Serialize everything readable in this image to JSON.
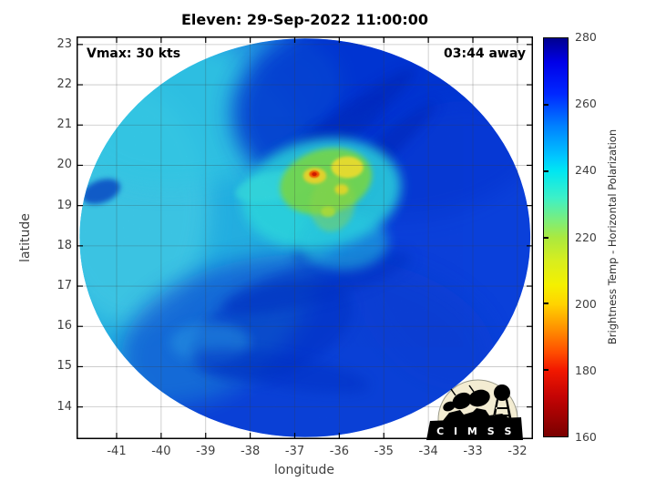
{
  "figure": {
    "title": "Eleven: 29-Sep-2022 11:00:00"
  },
  "annotations": {
    "vmax": "Vmax: 30 kts",
    "eta": "03:44 away"
  },
  "logo": {
    "name": "CIMSS",
    "banner_text": "C I M S S",
    "circle_color": "#f3ecd2"
  },
  "chart_data": {
    "type": "heatmap",
    "title": "Eleven: 29-Sep-2022 11:00:00",
    "subtitle_left": "Vmax: 30 kts",
    "subtitle_right": "03:44 away",
    "xlabel": "longitude",
    "ylabel": "latitude",
    "xlim": [
      -41.9,
      -31.65
    ],
    "ylim": [
      13.2,
      23.2
    ],
    "x_ticks": [
      -41,
      -40,
      -39,
      -38,
      -37,
      -36,
      -35,
      -34,
      -33,
      -32
    ],
    "y_ticks": [
      14,
      15,
      16,
      17,
      18,
      19,
      20,
      21,
      22,
      23
    ],
    "grid": true,
    "grid_color": "rgba(60,60,60,0.3)",
    "swath": {
      "center_lon": -36.77,
      "center_lat": 18.2,
      "rx_deg": 5.06,
      "ry_deg": 4.95,
      "base_color": "#0b4bee"
    },
    "features": [
      [
        -40.0,
        18.6,
        3.7,
        4.6,
        0,
        "#29c6ef",
        0.9,
        "b12"
      ],
      [
        -40.7,
        19.0,
        1.8,
        3.0,
        0,
        "#4bdaf3",
        0.7,
        "b12"
      ],
      [
        -38.9,
        21.4,
        3.0,
        1.8,
        -15,
        "#36d2f1",
        0.7,
        "b12"
      ],
      [
        -34.8,
        21.3,
        3.6,
        2.6,
        0,
        "#0635dc",
        0.85,
        "b12"
      ],
      [
        -33.2,
        18.0,
        2.6,
        3.6,
        0,
        "#0a41e4",
        0.55,
        "b12"
      ],
      [
        -36.7,
        15.2,
        4.2,
        2.6,
        0,
        "#0842de",
        0.6,
        "b12"
      ],
      [
        -37.5,
        15.9,
        1.9,
        1.1,
        -20,
        "#0533cf",
        0.5,
        "b6"
      ],
      [
        -38.9,
        15.6,
        0.9,
        0.5,
        0,
        "#2da8f2",
        0.45,
        "b6"
      ],
      [
        -35.8,
        21.1,
        1.9,
        0.35,
        -38,
        "#0228c0",
        0.55,
        "b6"
      ],
      [
        -35.1,
        20.3,
        1.7,
        0.28,
        -42,
        "#0228c0",
        0.5,
        "b6"
      ],
      [
        -36.4,
        20.6,
        1.5,
        0.3,
        -30,
        "#0531cc",
        0.5,
        "b6"
      ],
      [
        -35.95,
        18.95,
        1.6,
        0.45,
        -50,
        "#0329c4",
        0.45,
        "b6"
      ],
      [
        -36.5,
        17.1,
        2.2,
        0.5,
        -15,
        "#0431ce",
        0.5,
        "b6"
      ],
      [
        -37.3,
        14.9,
        2.0,
        0.4,
        10,
        "#0431ce",
        0.45,
        "b6"
      ],
      [
        -41.35,
        19.35,
        0.45,
        0.28,
        -20,
        "#0531c8",
        0.7,
        "b3"
      ],
      [
        -36.4,
        19.3,
        1.8,
        1.35,
        -10,
        "#2fe2ea",
        0.85,
        "b6"
      ],
      [
        -37.4,
        19.5,
        0.95,
        0.35,
        -12,
        "#38e3e8",
        0.75,
        "b3"
      ],
      [
        -35.9,
        18.1,
        1.0,
        0.7,
        0,
        "#2bd8ee",
        0.5,
        "b6"
      ],
      [
        -36.3,
        19.6,
        1.05,
        0.8,
        -15,
        "#7ee44d",
        0.9,
        "b3"
      ],
      [
        -36.15,
        19.05,
        0.5,
        0.7,
        10,
        "#9ae24a",
        0.45,
        "b3"
      ],
      [
        -35.82,
        19.95,
        0.36,
        0.27,
        0,
        "#f8ea33",
        0.95,
        "b2"
      ],
      [
        -36.55,
        19.74,
        0.26,
        0.2,
        0,
        "#f8df2e",
        0.95,
        "b2"
      ],
      [
        -35.95,
        19.4,
        0.15,
        0.13,
        0,
        "#f2e42c",
        0.9,
        "b2"
      ],
      [
        -36.25,
        18.85,
        0.16,
        0.13,
        0,
        "#b8e83a",
        0.85,
        "b2"
      ],
      [
        -36.56,
        19.78,
        0.115,
        0.09,
        0,
        "#ff5a00",
        1,
        "b1"
      ],
      [
        -36.56,
        19.78,
        0.055,
        0.045,
        0,
        "#dd1c00",
        1,
        null
      ]
    ],
    "colorbar": {
      "label": "Brightness Temp - Horizontal Polarization",
      "min": 160,
      "max": 280,
      "ticks": [
        280,
        260,
        240,
        220,
        200,
        180,
        160
      ],
      "minor_tick_values": [
        260,
        240,
        220,
        200,
        180
      ],
      "gradient": [
        [
          0,
          "#00008f"
        ],
        [
          6,
          "#0000e8"
        ],
        [
          14,
          "#0028ff"
        ],
        [
          22,
          "#0080ff"
        ],
        [
          30,
          "#00c8ff"
        ],
        [
          33.3,
          "#00e6f2"
        ],
        [
          40,
          "#3cf0c8"
        ],
        [
          46,
          "#7fee77"
        ],
        [
          50,
          "#aae93f"
        ],
        [
          56,
          "#d8ee1e"
        ],
        [
          62,
          "#f4f000"
        ],
        [
          66.7,
          "#ffd400"
        ],
        [
          73,
          "#ff9000"
        ],
        [
          79,
          "#ff4c00"
        ],
        [
          83.3,
          "#f21800"
        ],
        [
          90,
          "#c40404"
        ],
        [
          100,
          "#7a0000"
        ]
      ]
    }
  }
}
